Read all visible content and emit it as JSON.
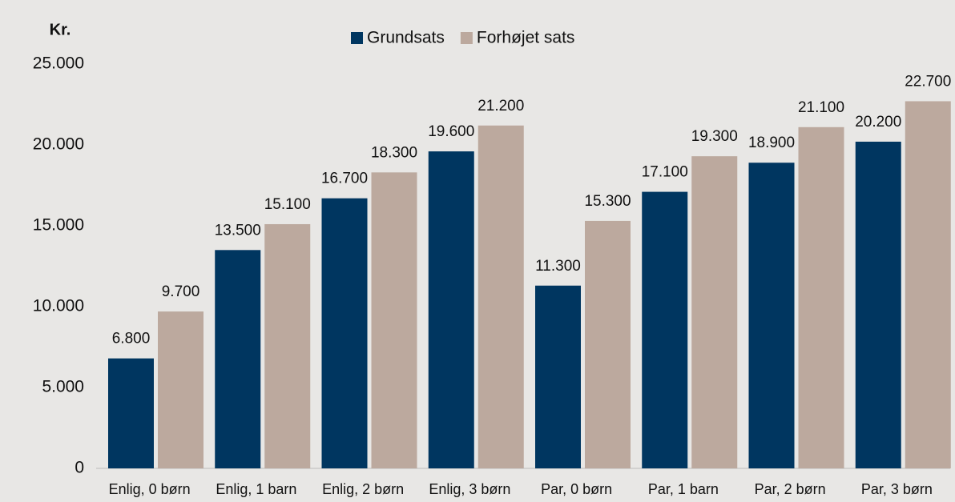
{
  "chart_data": {
    "type": "bar",
    "y_axis_label": "Kr.",
    "categories": [
      "Enlig, 0 børn",
      "Enlig, 1 barn",
      "Enlig, 2 børn",
      "Enlig, 3 børn",
      "Par, 0 børn",
      "Par, 1 barn",
      "Par, 2 børn",
      "Par, 3 børn"
    ],
    "series": [
      {
        "name": "Grundsats",
        "color": "#003660",
        "values": [
          6800,
          13500,
          16700,
          19600,
          11300,
          17100,
          18900,
          20200
        ],
        "value_labels": [
          "6.800",
          "13.500",
          "16.700",
          "19.600",
          "11.300",
          "17.100",
          "18.900",
          "20.200"
        ]
      },
      {
        "name": "Forhøjet sats",
        "color": "#bca99e",
        "values": [
          9700,
          15100,
          18300,
          21200,
          15300,
          19300,
          21100,
          22700
        ],
        "value_labels": [
          "9.700",
          "15.100",
          "18.300",
          "21.200",
          "15.300",
          "19.300",
          "21.100",
          "22.700"
        ]
      }
    ],
    "ylim": [
      0,
      25000
    ],
    "yticks": [
      0,
      {
        "value": 5000,
        "label": "5.000"
      },
      {
        "value": 10000,
        "label": "10.000"
      },
      {
        "value": 15000,
        "label": "15.000"
      },
      {
        "value": 20000,
        "label": "20.000"
      },
      {
        "value": 25000,
        "label": "25.000"
      }
    ],
    "legend": "top",
    "grid": false
  }
}
